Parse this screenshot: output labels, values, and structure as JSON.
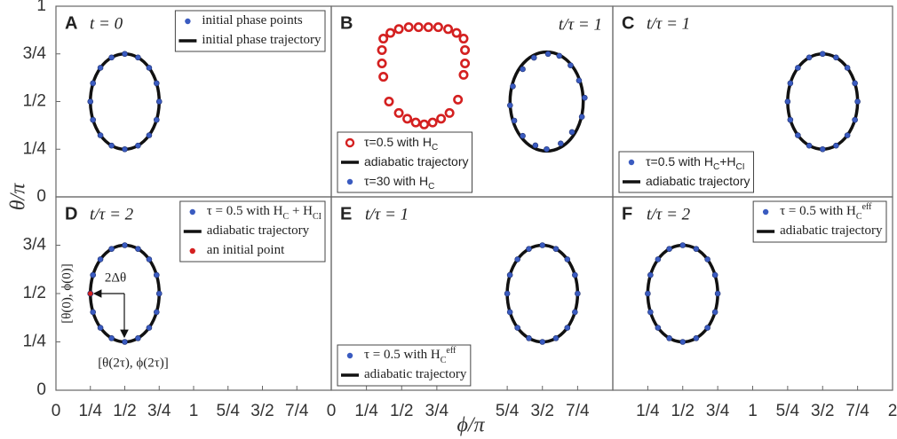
{
  "chart_data": {
    "type": "scatter",
    "x_label": "ϕ/π",
    "y_label": "θ/π",
    "panels": [
      {
        "letter": "A",
        "time_label": "t = 0",
        "time_position": "left",
        "legend_corner": "upper right",
        "legend_font": "serif",
        "xlim": [
          0,
          2
        ],
        "ylim": [
          0,
          1
        ],
        "yticks": [
          1,
          {
            "value": 0.75,
            "label": "3/4"
          },
          {
            "value": 0.5,
            "label": "1/2"
          },
          {
            "value": 0.25,
            "label": "1/4"
          },
          0
        ],
        "series": [
          {
            "name": [
              {
                "t": "initial phase points"
              }
            ],
            "kind": "points",
            "color": "#3a5bc0",
            "x": [
              0.75,
              0.731,
              0.677,
              0.596,
              0.5,
              0.404,
              0.323,
              0.269,
              0.25,
              0.269,
              0.323,
              0.404,
              0.5,
              0.596,
              0.677,
              0.731
            ],
            "y": [
              0.5,
              0.596,
              0.677,
              0.731,
              0.75,
              0.731,
              0.677,
              0.596,
              0.5,
              0.404,
              0.323,
              0.269,
              0.25,
              0.269,
              0.323,
              0.404
            ]
          },
          {
            "name": [
              {
                "t": "initial phase trajectory"
              }
            ],
            "kind": "ellipse",
            "color": "#111111",
            "center": [
              0.5,
              0.5
            ],
            "radius": [
              0.25,
              0.25
            ]
          }
        ]
      },
      {
        "letter": "B",
        "time_label": "t/τ = 1",
        "time_position": "right",
        "legend_corner": "lower left",
        "legend_font": "sans",
        "xlim": [
          0,
          2
        ],
        "ylim": [
          0,
          1
        ],
        "series": [
          {
            "name": [
              {
                "t": "τ=0.5 with H"
              },
              {
                "t": "C",
                "s": "sub"
              }
            ],
            "kind": "circles",
            "color": "#d42020",
            "x": [
              0.37,
              0.42,
              0.48,
              0.55,
              0.62,
              0.69,
              0.76,
              0.83,
              0.89,
              0.94,
              0.36,
              0.36,
              0.37,
              0.95,
              0.95,
              0.94,
              0.41,
              0.9,
              0.48,
              0.54,
              0.6,
              0.66,
              0.72,
              0.78,
              0.84
            ],
            "y": [
              0.83,
              0.86,
              0.88,
              0.89,
              0.89,
              0.89,
              0.89,
              0.88,
              0.86,
              0.83,
              0.77,
              0.7,
              0.63,
              0.77,
              0.7,
              0.64,
              0.5,
              0.51,
              0.44,
              0.41,
              0.39,
              0.38,
              0.39,
              0.41,
              0.44
            ]
          },
          {
            "name": [
              {
                "t": "adiabatic trajectory"
              }
            ],
            "kind": "ellipse",
            "color": "#111111",
            "center": [
              1.53,
              0.5
            ],
            "radius": [
              0.26,
              0.26
            ]
          },
          {
            "name": [
              {
                "t": "τ=30 with H"
              },
              {
                "t": "C",
                "s": "sub"
              }
            ],
            "kind": "points",
            "color": "#3a5bc0",
            "x": [
              1.8,
              1.76,
              1.7,
              1.62,
              1.54,
              1.44,
              1.36,
              1.29,
              1.27,
              1.3,
              1.36,
              1.45,
              1.53,
              1.63,
              1.71,
              1.78
            ],
            "y": [
              0.52,
              0.61,
              0.69,
              0.74,
              0.75,
              0.73,
              0.67,
              0.58,
              0.48,
              0.4,
              0.32,
              0.27,
              0.25,
              0.28,
              0.34,
              0.42
            ]
          }
        ]
      },
      {
        "letter": "C",
        "time_label": "t/τ = 1",
        "time_position": "left",
        "legend_corner": "lower left",
        "legend_font": "sans",
        "xlim": [
          0,
          2
        ],
        "ylim": [
          0,
          1
        ],
        "series": [
          {
            "name": [
              {
                "t": "τ=0.5 with H"
              },
              {
                "t": "C",
                "s": "sub"
              },
              {
                "t": "+H"
              },
              {
                "t": "CI",
                "s": "sub"
              }
            ],
            "kind": "points",
            "color": "#3a5bc0",
            "x": [
              1.75,
              1.731,
              1.677,
              1.596,
              1.5,
              1.404,
              1.323,
              1.269,
              1.25,
              1.269,
              1.323,
              1.404,
              1.5,
              1.596,
              1.677,
              1.731
            ],
            "y": [
              0.5,
              0.596,
              0.677,
              0.731,
              0.75,
              0.731,
              0.677,
              0.596,
              0.5,
              0.404,
              0.323,
              0.269,
              0.25,
              0.269,
              0.323,
              0.404
            ]
          },
          {
            "name": [
              {
                "t": "adiabatic trajectory"
              }
            ],
            "kind": "ellipse",
            "color": "#111111",
            "center": [
              1.5,
              0.5
            ],
            "radius": [
              0.25,
              0.25
            ]
          }
        ]
      },
      {
        "letter": "D",
        "time_label": "t/τ = 2",
        "time_position": "left",
        "legend_corner": "upper right",
        "legend_font": "serif",
        "xlim": [
          0,
          2
        ],
        "ylim": [
          0,
          1
        ],
        "yticks": [
          {
            "value": 0.75,
            "label": "3/4"
          },
          {
            "value": 0.5,
            "label": "1/2"
          },
          {
            "value": 0.25,
            "label": "1/4"
          },
          0
        ],
        "xticks": [
          0,
          {
            "value": 0.25,
            "label": "1/4"
          },
          {
            "value": 0.5,
            "label": "1/2"
          },
          {
            "value": 0.75,
            "label": "3/4"
          },
          1,
          {
            "value": 1.25,
            "label": "5/4"
          },
          {
            "value": 1.5,
            "label": "3/2"
          },
          {
            "value": 1.75,
            "label": "7/4"
          }
        ],
        "annotations": [
          "[θ(0), ϕ(0)]",
          "2Δθ",
          "[θ(2τ), ϕ(2τ)]"
        ],
        "series": [
          {
            "name": [
              {
                "t": "τ = 0.5 with H"
              },
              {
                "t": "C",
                "s": "sub"
              },
              {
                "t": " + H"
              },
              {
                "t": "CI",
                "s": "sub"
              }
            ],
            "kind": "points",
            "color": "#3a5bc0",
            "x": [
              0.75,
              0.731,
              0.677,
              0.596,
              0.5,
              0.404,
              0.323,
              0.269,
              0.25,
              0.269,
              0.323,
              0.404,
              0.5,
              0.596,
              0.677,
              0.731
            ],
            "y": [
              0.5,
              0.596,
              0.677,
              0.731,
              0.75,
              0.731,
              0.677,
              0.596,
              0.5,
              0.404,
              0.323,
              0.269,
              0.25,
              0.269,
              0.323,
              0.404
            ]
          },
          {
            "name": [
              {
                "t": "adiabatic trajectory"
              }
            ],
            "kind": "ellipse",
            "color": "#111111",
            "center": [
              0.5,
              0.5
            ],
            "radius": [
              0.25,
              0.25
            ]
          },
          {
            "name": [
              {
                "t": "an initial point"
              }
            ],
            "kind": "points",
            "color": "#d42020",
            "x": [
              0.25
            ],
            "y": [
              0.5
            ]
          }
        ]
      },
      {
        "letter": "E",
        "time_label": "t/τ = 1",
        "time_position": "left",
        "legend_corner": "lower left",
        "legend_font": "serif",
        "xlim": [
          0,
          2
        ],
        "ylim": [
          0,
          1
        ],
        "xticks": [
          0,
          {
            "value": 0.25,
            "label": "1/4"
          },
          {
            "value": 0.5,
            "label": "1/2"
          },
          {
            "value": 0.75,
            "label": "3/4"
          },
          {
            "value": 1.25,
            "label": "5/4"
          },
          {
            "value": 1.5,
            "label": "3/2"
          },
          {
            "value": 1.75,
            "label": "7/4"
          }
        ],
        "series": [
          {
            "name": [
              {
                "t": "τ = 0.5 with H"
              },
              {
                "t": "C",
                "s": "sub"
              },
              {
                "t": "eff",
                "s": "sup"
              }
            ],
            "kind": "points",
            "color": "#3a5bc0",
            "x": [
              1.75,
              1.731,
              1.677,
              1.596,
              1.5,
              1.404,
              1.323,
              1.269,
              1.25,
              1.269,
              1.323,
              1.404,
              1.5,
              1.596,
              1.677,
              1.731
            ],
            "y": [
              0.5,
              0.596,
              0.677,
              0.731,
              0.75,
              0.731,
              0.677,
              0.596,
              0.5,
              0.404,
              0.323,
              0.269,
              0.25,
              0.269,
              0.323,
              0.404
            ]
          },
          {
            "name": [
              {
                "t": "adiabatic trajectory"
              }
            ],
            "kind": "ellipse",
            "color": "#111111",
            "center": [
              1.5,
              0.5
            ],
            "radius": [
              0.25,
              0.25
            ]
          }
        ]
      },
      {
        "letter": "F",
        "time_label": "t/τ = 2",
        "time_position": "left",
        "legend_corner": "upper right",
        "legend_font": "serif",
        "xlim": [
          0,
          2
        ],
        "ylim": [
          0,
          1
        ],
        "xticks": [
          {
            "value": 0.25,
            "label": "1/4"
          },
          {
            "value": 0.5,
            "label": "1/2"
          },
          {
            "value": 0.75,
            "label": "3/4"
          },
          1,
          {
            "value": 1.25,
            "label": "5/4"
          },
          {
            "value": 1.5,
            "label": "3/2"
          },
          {
            "value": 1.75,
            "label": "7/4"
          },
          2
        ],
        "series": [
          {
            "name": [
              {
                "t": "τ = 0.5 with H"
              },
              {
                "t": "C",
                "s": "sub"
              },
              {
                "t": "eff",
                "s": "sup"
              }
            ],
            "kind": "points",
            "color": "#3a5bc0",
            "x": [
              0.75,
              0.731,
              0.677,
              0.596,
              0.5,
              0.404,
              0.323,
              0.269,
              0.25,
              0.269,
              0.323,
              0.404,
              0.5,
              0.596,
              0.677,
              0.731
            ],
            "y": [
              0.5,
              0.596,
              0.677,
              0.731,
              0.75,
              0.731,
              0.677,
              0.596,
              0.5,
              0.404,
              0.323,
              0.269,
              0.25,
              0.269,
              0.323,
              0.404
            ]
          },
          {
            "name": [
              {
                "t": "adiabatic trajectory"
              }
            ],
            "kind": "ellipse",
            "color": "#111111",
            "center": [
              0.5,
              0.5
            ],
            "radius": [
              0.25,
              0.25
            ]
          }
        ]
      }
    ]
  }
}
